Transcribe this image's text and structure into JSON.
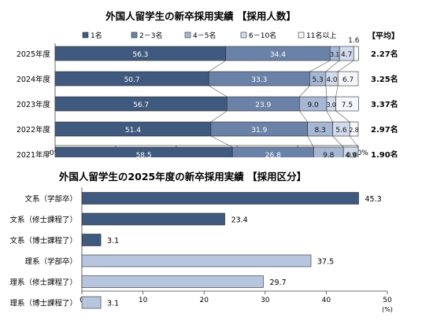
{
  "chart_data": [
    {
      "type": "bar",
      "orientation": "horizontal",
      "stacked": true,
      "title": "外国人留学生の新卒採用実績 【採用人数】",
      "categories": [
        "2025年度",
        "2024年度",
        "2023年度",
        "2022年度",
        "2021年度"
      ],
      "series": [
        {
          "name": "1名",
          "values": [
            56.3,
            50.7,
            56.7,
            51.4,
            58.5
          ],
          "color": "#3f5a7e"
        },
        {
          "name": "2－3名",
          "values": [
            34.4,
            33.3,
            23.9,
            31.9,
            26.8
          ],
          "color": "#6b82a8"
        },
        {
          "name": "4－5名",
          "values": [
            3.1,
            5.3,
            9.0,
            8.3,
            9.8
          ],
          "color": "#a6b6d3"
        },
        {
          "name": "6－10名",
          "values": [
            4.7,
            4.0,
            3.0,
            5.6,
            4.9
          ],
          "color": "#d2dbeb"
        },
        {
          "name": "11名以上",
          "values": [
            1.6,
            6.7,
            7.5,
            2.8,
            0.0
          ],
          "color": "#f4f6fa"
        }
      ],
      "xlim": [
        0,
        100
      ],
      "xticks": [
        "0%",
        "20%",
        "40%",
        "60%",
        "80%",
        "100%"
      ],
      "legend_position": "top",
      "average_header": "【平均】",
      "averages": [
        "2.27名",
        "3.25名",
        "3.37名",
        "2.97名",
        "1.90名"
      ]
    },
    {
      "type": "bar",
      "orientation": "horizontal",
      "title": "外国人留学生の2025年度の新卒採用実績 【採用区分】",
      "categories": [
        "文系（学部卒）",
        "文系（修士課程了）",
        "文系（博士課程了）",
        "理系（学部卒）",
        "理系（修士課程了）",
        "理系（博士課程了）"
      ],
      "values": [
        45.3,
        23.4,
        3.1,
        37.5,
        29.7,
        3.1
      ],
      "colors": [
        "#3f5a7e",
        "#3f5a7e",
        "#3f5a7e",
        "#b7c5de",
        "#b7c5de",
        "#b7c5de"
      ],
      "xlim": [
        0,
        50
      ],
      "xticks": [
        "0",
        "10",
        "20",
        "30",
        "40",
        "50"
      ],
      "unit": "(%)"
    }
  ]
}
